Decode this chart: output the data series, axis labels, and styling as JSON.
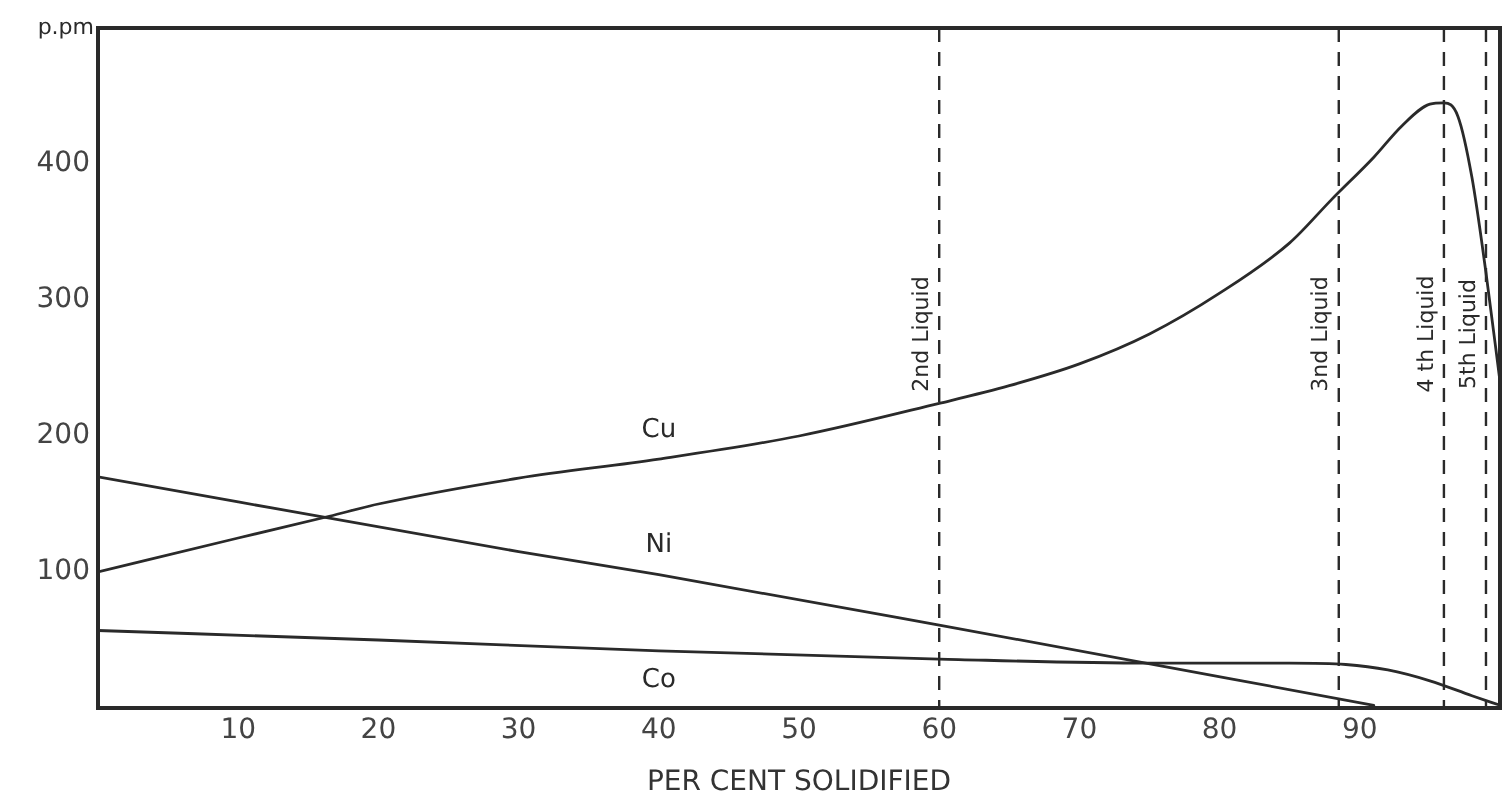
{
  "chart_data": {
    "type": "line",
    "xlabel": "PER CENT SOLIDIFIED",
    "ylabel": "p.pm",
    "xlim": [
      0,
      100
    ],
    "ylim": [
      0,
      500
    ],
    "xticks": [
      10,
      20,
      30,
      40,
      50,
      60,
      70,
      80,
      90
    ],
    "yticks": [
      100,
      200,
      300,
      400
    ],
    "grid": false,
    "legend": false,
    "marker": "none",
    "line_style": "solid",
    "series": [
      {
        "name": "Cu",
        "color": "#2a2a2a",
        "x": [
          0,
          10,
          16.5,
          20,
          30,
          40,
          50,
          60,
          65,
          70,
          75,
          80,
          85,
          88,
          91,
          93,
          95,
          96,
          97,
          98,
          99,
          100
        ],
        "values": [
          100,
          125,
          141,
          150,
          169,
          183,
          200,
          224,
          237,
          253,
          275,
          305,
          342,
          374,
          405,
          428,
          444,
          445,
          435,
          390,
          320,
          240
        ]
      },
      {
        "name": "Ni",
        "color": "#2a2a2a",
        "x": [
          0,
          30,
          40,
          60,
          91
        ],
        "values": [
          170,
          115,
          98,
          61,
          2
        ]
      },
      {
        "name": "Co",
        "color": "#2a2a2a",
        "x": [
          0,
          20,
          40,
          60,
          75,
          85,
          89,
          92,
          95,
          98,
          100
        ],
        "values": [
          57,
          50,
          42,
          36,
          33,
          33,
          32,
          28,
          20,
          9,
          2
        ]
      }
    ],
    "ref_lines": [
      {
        "axis": "x",
        "value": 60,
        "label": "2nd Liquid",
        "color": "#2a2a2a",
        "line_style": "dashed"
      },
      {
        "axis": "x",
        "value": 88.5,
        "label": "3nd Liquid",
        "color": "#2a2a2a",
        "line_style": "dashed"
      },
      {
        "axis": "x",
        "value": 96,
        "label": "4 th Liquid",
        "color": "#2a2a2a",
        "line_style": "dashed"
      },
      {
        "axis": "x",
        "value": 99,
        "label": "5th Liquid",
        "color": "#2a2a2a",
        "line_style": "dashed"
      }
    ]
  }
}
